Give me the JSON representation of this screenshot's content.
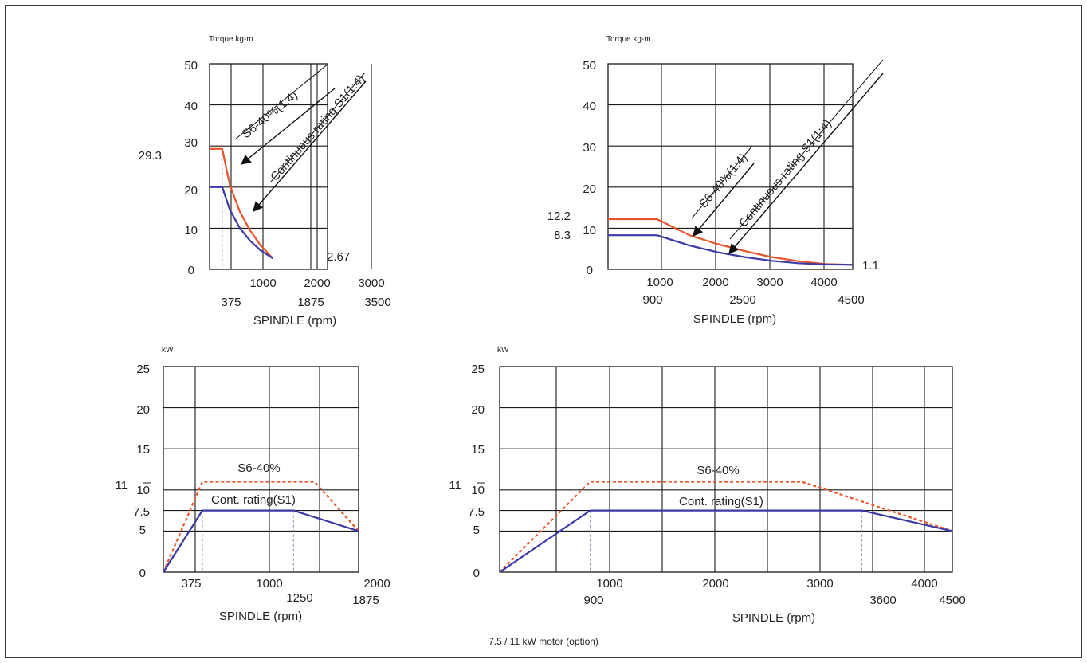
{
  "caption": "7.5 / 11 kW motor (option)",
  "colors": {
    "s6": "#e8552a",
    "s1": "#3a39a5",
    "grid": "#1a1a1a",
    "guide": "#8a8aa8"
  },
  "chart_data": [
    {
      "type": "line",
      "ylabel": "Torque kg-m",
      "xlabel": "SPINDLE (rpm)",
      "xlim": [
        0,
        3500
      ],
      "ylim": [
        0,
        50
      ],
      "grid": true,
      "x_ticks_upper": [
        "1000",
        "2000",
        "3000"
      ],
      "x_ticks_lower": [
        "375",
        "1875",
        "3500"
      ],
      "y_ticks": [
        "0",
        "10",
        "20",
        "30",
        "40",
        "50"
      ],
      "series": [
        {
          "name": "S6-40%(1:4)",
          "x": [
            0,
            375,
            600,
            900,
            1200,
            1500,
            1875
          ],
          "y": [
            29.3,
            29.3,
            20.5,
            14.0,
            9.5,
            6.0,
            2.67
          ]
        },
        {
          "name": "Continuous rating S1(1:4)",
          "x": [
            0,
            375,
            600,
            900,
            1200,
            1500,
            1875
          ],
          "y": [
            20,
            20,
            14.5,
            10.0,
            7.0,
            4.7,
            2.67
          ]
        }
      ],
      "annotations": {
        "start_value": "29.3",
        "end_value": "2.67"
      }
    },
    {
      "type": "line",
      "ylabel": "Torque kg-m",
      "xlabel": "SPINDLE (rpm)",
      "xlim": [
        0,
        4500
      ],
      "ylim": [
        0,
        50
      ],
      "grid": true,
      "x_ticks_upper": [
        "1000",
        "2000",
        "3000",
        "4000"
      ],
      "x_ticks_lower": [
        "900",
        "2500",
        "4500"
      ],
      "y_ticks": [
        "0",
        "10",
        "20",
        "30",
        "40",
        "50"
      ],
      "series": [
        {
          "name": "S6-40%(1:4)",
          "x": [
            0,
            900,
            1500,
            2000,
            2500,
            3000,
            3500,
            4000,
            4500
          ],
          "y": [
            12.2,
            12.2,
            8.3,
            6.2,
            4.5,
            3.0,
            2.0,
            1.3,
            1.1
          ]
        },
        {
          "name": "Continuous rating S1(1:4)",
          "x": [
            0,
            900,
            1500,
            2000,
            2500,
            3000,
            3500,
            4000,
            4500
          ],
          "y": [
            8.3,
            8.3,
            5.8,
            4.2,
            3.0,
            2.1,
            1.5,
            1.2,
            1.1
          ]
        }
      ],
      "annotations": {
        "start_value_s6": "12.2",
        "start_value_s1": "8.3",
        "end_value": "1.1"
      }
    },
    {
      "type": "line",
      "ylabel": "kW",
      "xlabel": "SPINDLE (rpm)",
      "xlim": [
        0,
        2000
      ],
      "ylim": [
        0,
        25
      ],
      "grid": true,
      "x_ticks_upper": [
        "375",
        "1000",
        "2000"
      ],
      "x_ticks_lower": [
        "1250",
        "1875"
      ],
      "y_ticks": [
        "0",
        "5",
        "7.5",
        "10",
        "15",
        "20",
        "25"
      ],
      "extra_y_label": "11",
      "series": [
        {
          "name": "S6-40%",
          "x": [
            0,
            375,
            1450,
            1875
          ],
          "y": [
            0,
            11,
            11,
            5
          ]
        },
        {
          "name": "Cont. rating(S1)",
          "x": [
            0,
            375,
            1250,
            1875
          ],
          "y": [
            0,
            7.5,
            7.5,
            5
          ]
        }
      ]
    },
    {
      "type": "line",
      "ylabel": "kW",
      "xlabel": "SPINDLE (rpm)",
      "xlim": [
        0,
        4500
      ],
      "ylim": [
        0,
        25
      ],
      "grid": true,
      "x_ticks_upper": [
        "1000",
        "2000",
        "3000",
        "4000"
      ],
      "x_ticks_lower": [
        "900",
        "3600",
        "4500"
      ],
      "y_ticks": [
        "0",
        "5",
        "7.5",
        "10",
        "15",
        "20",
        "25"
      ],
      "extra_y_label": "11",
      "series": [
        {
          "name": "S6-40%",
          "x": [
            0,
            900,
            3000,
            4500
          ],
          "y": [
            0,
            11,
            11,
            5
          ]
        },
        {
          "name": "Cont. rating(S1)",
          "x": [
            0,
            900,
            3600,
            4500
          ],
          "y": [
            0,
            7.5,
            7.5,
            5
          ]
        }
      ]
    }
  ]
}
